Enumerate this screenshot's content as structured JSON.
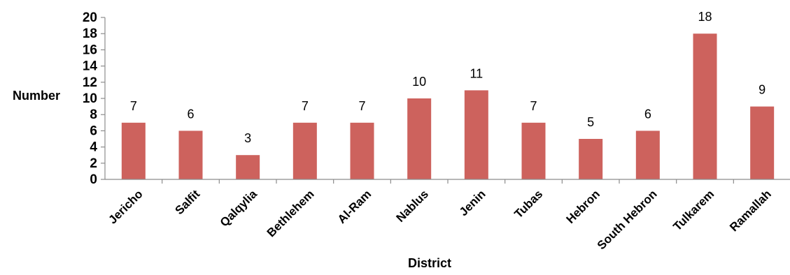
{
  "chart_data": {
    "type": "bar",
    "categories": [
      "Jericho",
      "Salfit",
      "Qalqylia",
      "Bethlehem",
      "Al-Ram",
      "Nablus",
      "Jenin",
      "Tubas",
      "Hebron",
      "South Hebron",
      "Tulkarem",
      "Ramallah"
    ],
    "values": [
      7,
      6,
      3,
      7,
      7,
      10,
      11,
      7,
      5,
      6,
      18,
      9
    ],
    "title": "",
    "xlabel": "District",
    "ylabel": "Number",
    "ylim": [
      0,
      20
    ],
    "yticks": [
      0,
      2,
      4,
      6,
      8,
      10,
      12,
      14,
      16,
      18,
      20
    ],
    "bar_color": "#cd625d",
    "grid": false,
    "legend": "none"
  }
}
